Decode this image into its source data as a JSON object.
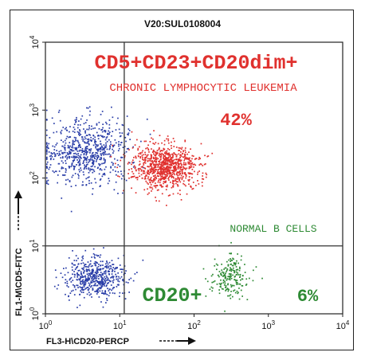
{
  "chart_data": {
    "type": "scatter",
    "title": "V20:SUL0108004",
    "xlabel": "FL3-H\\CD20-PERCP",
    "ylabel": "FL1-M\\CD5-FITC",
    "x_scale": "log",
    "y_scale": "log",
    "xlim": [
      1,
      10000
    ],
    "ylim": [
      1,
      10000
    ],
    "x_ticks": [
      {
        "base": "10",
        "exp": "0"
      },
      {
        "base": "10",
        "exp": "1"
      },
      {
        "base": "10",
        "exp": "2"
      },
      {
        "base": "10",
        "exp": "3"
      },
      {
        "base": "10",
        "exp": "4"
      }
    ],
    "y_ticks": [
      {
        "base": "10",
        "exp": "0"
      },
      {
        "base": "10",
        "exp": "1"
      },
      {
        "base": "10",
        "exp": "2"
      },
      {
        "base": "10",
        "exp": "3"
      },
      {
        "base": "10",
        "exp": "4"
      }
    ],
    "quadrant_gates": {
      "x": 11.5,
      "y": 10
    },
    "series": [
      {
        "color": "#2a3ea8",
        "clusters": [
          {
            "x_center": 3.5,
            "y_center": 250,
            "count": 700
          },
          {
            "x_center": 4.5,
            "y_center": 3.5,
            "count": 520
          }
        ]
      },
      {
        "color": "#e0312e",
        "clusters": [
          {
            "x_center": 40,
            "y_center": 150,
            "count": 950
          }
        ]
      },
      {
        "color": "#2e8a34",
        "clusters": [
          {
            "x_center": 300,
            "y_center": 3.8,
            "count": 210
          }
        ]
      }
    ],
    "annotations": {
      "top_title": "CD5+CD23+CD20dim+",
      "subtitle": "CHRONIC LYMPHOCYTIC LEUKEMIA",
      "cll_percent": "42%",
      "normal_label": "NORMAL B CELLS",
      "cd20_label": "CD20+",
      "cd20_percent": "6%"
    }
  }
}
